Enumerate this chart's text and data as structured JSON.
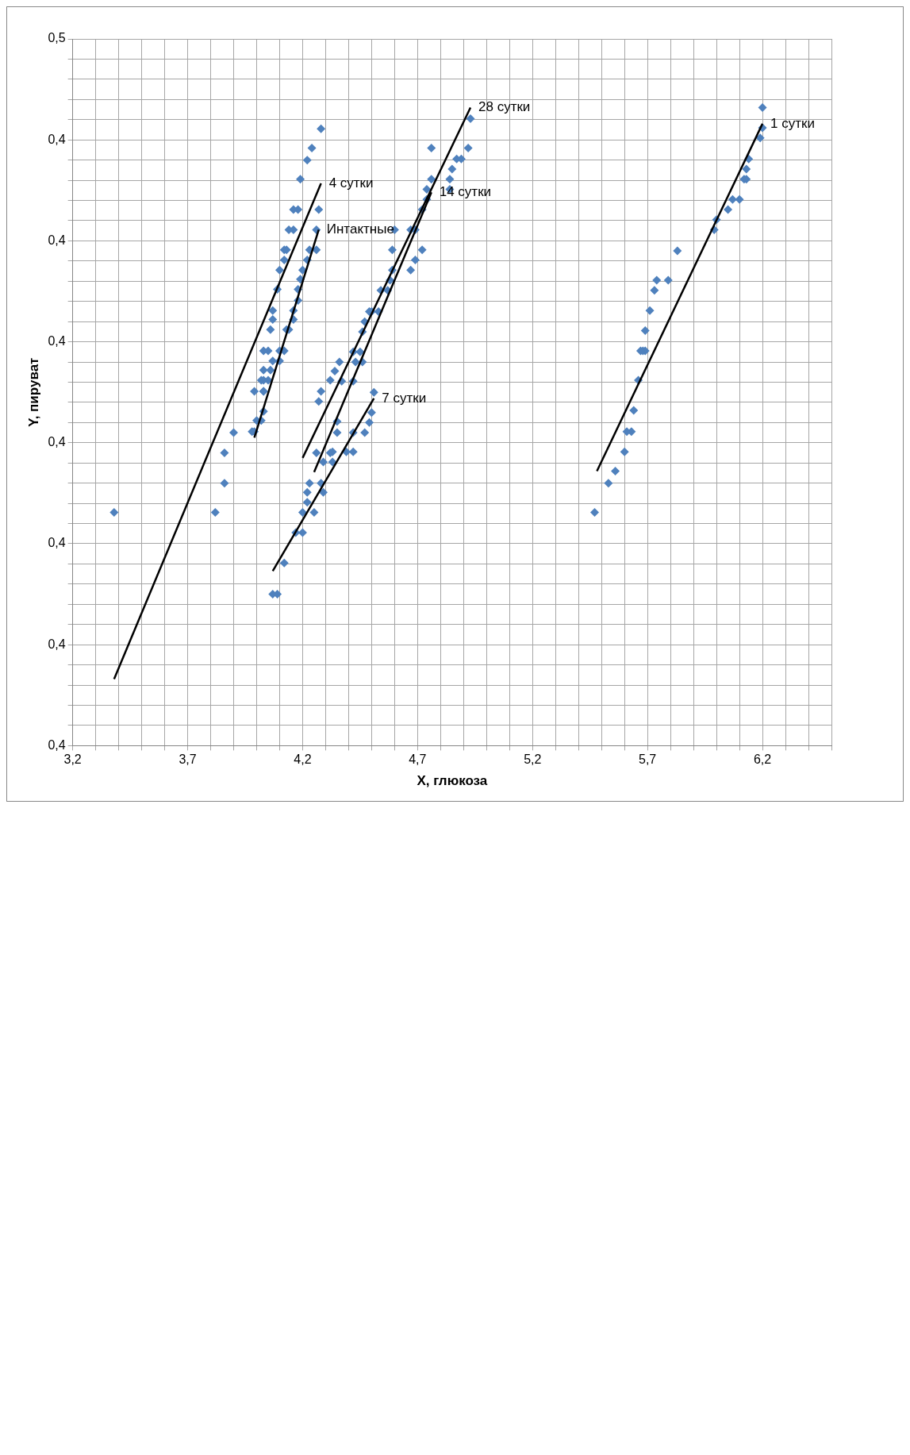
{
  "chart_data": {
    "type": "scatter",
    "xlabel": "X, глюкоза",
    "ylabel": "Y, пируват",
    "grid": true,
    "xlim": [
      3.2,
      6.5
    ],
    "ylim": [
      0.38,
      0.45
    ],
    "xticks": [
      {
        "value": 3.2,
        "label": "3,2"
      },
      {
        "value": 3.3,
        "label": null
      },
      {
        "value": 3.4,
        "label": null
      },
      {
        "value": 3.5,
        "label": null
      },
      {
        "value": 3.6,
        "label": null
      },
      {
        "value": 3.7,
        "label": "3,7"
      },
      {
        "value": 3.8,
        "label": null
      },
      {
        "value": 3.9,
        "label": null
      },
      {
        "value": 4.0,
        "label": null
      },
      {
        "value": 4.1,
        "label": null
      },
      {
        "value": 4.2,
        "label": "4,2"
      },
      {
        "value": 4.3,
        "label": null
      },
      {
        "value": 4.4,
        "label": null
      },
      {
        "value": 4.5,
        "label": null
      },
      {
        "value": 4.6,
        "label": null
      },
      {
        "value": 4.7,
        "label": "4,7"
      },
      {
        "value": 4.8,
        "label": null
      },
      {
        "value": 4.9,
        "label": null
      },
      {
        "value": 5.0,
        "label": null
      },
      {
        "value": 5.1,
        "label": null
      },
      {
        "value": 5.2,
        "label": "5,2"
      },
      {
        "value": 5.3,
        "label": null
      },
      {
        "value": 5.4,
        "label": null
      },
      {
        "value": 5.5,
        "label": null
      },
      {
        "value": 5.6,
        "label": null
      },
      {
        "value": 5.7,
        "label": "5,7"
      },
      {
        "value": 5.8,
        "label": null
      },
      {
        "value": 5.9,
        "label": null
      },
      {
        "value": 6.0,
        "label": null
      },
      {
        "value": 6.1,
        "label": null
      },
      {
        "value": 6.2,
        "label": "6,2"
      },
      {
        "value": 6.3,
        "label": null
      },
      {
        "value": 6.4,
        "label": null
      },
      {
        "value": 6.5,
        "label": null
      }
    ],
    "yticks": [
      {
        "value": 0.38,
        "label": "0,4"
      },
      {
        "value": 0.382,
        "label": null
      },
      {
        "value": 0.384,
        "label": null
      },
      {
        "value": 0.386,
        "label": null
      },
      {
        "value": 0.388,
        "label": null
      },
      {
        "value": 0.39,
        "label": "0,4"
      },
      {
        "value": 0.392,
        "label": null
      },
      {
        "value": 0.394,
        "label": null
      },
      {
        "value": 0.396,
        "label": null
      },
      {
        "value": 0.398,
        "label": null
      },
      {
        "value": 0.4,
        "label": "0,4"
      },
      {
        "value": 0.402,
        "label": null
      },
      {
        "value": 0.404,
        "label": null
      },
      {
        "value": 0.406,
        "label": null
      },
      {
        "value": 0.408,
        "label": null
      },
      {
        "value": 0.41,
        "label": "0,4"
      },
      {
        "value": 0.412,
        "label": null
      },
      {
        "value": 0.414,
        "label": null
      },
      {
        "value": 0.416,
        "label": null
      },
      {
        "value": 0.418,
        "label": null
      },
      {
        "value": 0.42,
        "label": "0,4"
      },
      {
        "value": 0.422,
        "label": null
      },
      {
        "value": 0.424,
        "label": null
      },
      {
        "value": 0.426,
        "label": null
      },
      {
        "value": 0.428,
        "label": null
      },
      {
        "value": 0.43,
        "label": "0,4"
      },
      {
        "value": 0.432,
        "label": null
      },
      {
        "value": 0.434,
        "label": null
      },
      {
        "value": 0.436,
        "label": null
      },
      {
        "value": 0.438,
        "label": null
      },
      {
        "value": 0.44,
        "label": "0,4"
      },
      {
        "value": 0.442,
        "label": null
      },
      {
        "value": 0.444,
        "label": null
      },
      {
        "value": 0.446,
        "label": null
      },
      {
        "value": 0.448,
        "label": null
      },
      {
        "value": 0.45,
        "label": "0,5"
      }
    ],
    "series": [
      {
        "type": "scatter",
        "marker": "diamond",
        "color": "#4f81bd",
        "x": [
          6.2,
          6.2,
          6.19,
          6.14,
          6.13,
          6.13,
          6.12,
          6.1,
          6.07,
          6.05,
          6,
          5.99,
          5.83,
          5.79,
          5.74,
          5.73,
          5.71,
          5.69,
          5.69,
          5.68,
          5.67,
          5.66,
          5.64,
          5.63,
          5.61,
          5.6,
          5.56,
          5.53,
          5.47,
          4.93,
          4.92,
          4.89,
          4.87,
          4.85,
          4.84,
          4.84,
          4.76,
          4.76,
          4.74,
          4.74,
          4.72,
          4.69,
          4.67,
          4.72,
          4.69,
          4.67,
          4.6,
          4.59,
          4.59,
          4.58,
          4.57,
          4.54,
          4.53,
          4.5,
          4.49,
          4.47,
          4.46,
          4.45,
          4.46,
          4.43,
          4.42,
          4.36,
          4.34,
          4.42,
          4.37,
          4.35,
          4.35,
          4.51,
          4.5,
          4.49,
          4.47,
          4.42,
          4.42,
          4.39,
          4.33,
          4.33,
          4.28,
          4.24,
          4.22,
          4.19,
          4.27,
          4.18,
          4.16,
          4.26,
          4.16,
          4.14,
          4.26,
          4.23,
          4.13,
          4.12,
          4.22,
          4.12,
          4.2,
          4.1,
          4.19,
          4.18,
          4.09,
          4.18,
          4.16,
          4.07,
          4.16,
          4.07,
          4.14,
          4.13,
          4.06,
          4.12,
          4.1,
          4.05,
          4.03,
          4.1,
          4.07,
          4.06,
          4.03,
          4.05,
          4.03,
          4.02,
          4.03,
          4.03,
          3.99,
          4.03,
          4.02,
          4,
          3.99,
          3.98,
          3.9,
          3.86,
          3.86,
          3.82,
          3.38,
          4.26,
          4.28,
          4.23,
          4.29,
          4.22,
          4.22,
          4.25,
          4.2,
          4.2,
          4.17,
          4.12,
          4.09,
          4.07,
          4.28,
          4.27,
          4.32,
          4.32,
          4.29
        ],
        "values": [
          0.4432,
          0.4412,
          0.4402,
          0.4381,
          0.4371,
          0.4361,
          0.4361,
          0.4341,
          0.4341,
          0.4331,
          0.4321,
          0.4311,
          0.429,
          0.4261,
          0.4261,
          0.4251,
          0.4231,
          0.4211,
          0.4191,
          0.4191,
          0.4191,
          0.4162,
          0.4132,
          0.4111,
          0.4111,
          0.4091,
          0.4072,
          0.406,
          0.4031,
          0.4421,
          0.4392,
          0.4381,
          0.4381,
          0.4371,
          0.4361,
          0.4351,
          0.4392,
          0.4361,
          0.4351,
          0.4341,
          0.4331,
          0.4311,
          0.4311,
          0.4291,
          0.4281,
          0.4271,
          0.4311,
          0.4291,
          0.4271,
          0.4261,
          0.4251,
          0.4251,
          0.423,
          0.423,
          0.423,
          0.422,
          0.421,
          0.419,
          0.418,
          0.418,
          0.419,
          0.418,
          0.4171,
          0.4161,
          0.4161,
          0.4121,
          0.411,
          0.415,
          0.413,
          0.412,
          0.411,
          0.411,
          0.4091,
          0.4091,
          0.4091,
          0.4081,
          0.4411,
          0.4392,
          0.438,
          0.4361,
          0.4331,
          0.4331,
          0.4331,
          0.4311,
          0.4311,
          0.4311,
          0.4291,
          0.4291,
          0.4291,
          0.4291,
          0.4281,
          0.4281,
          0.4271,
          0.4271,
          0.4262,
          0.4252,
          0.4252,
          0.4241,
          0.4231,
          0.4231,
          0.4222,
          0.4222,
          0.4212,
          0.4212,
          0.4212,
          0.4191,
          0.4191,
          0.4191,
          0.4191,
          0.4181,
          0.4181,
          0.4172,
          0.4172,
          0.4162,
          0.4162,
          0.4162,
          0.4151,
          0.4151,
          0.4151,
          0.4131,
          0.4122,
          0.4122,
          0.4111,
          0.4111,
          0.411,
          0.409,
          0.406,
          0.4031,
          0.4031,
          0.409,
          0.406,
          0.406,
          0.4051,
          0.4051,
          0.4041,
          0.4031,
          0.4031,
          0.4011,
          0.4011,
          0.3981,
          0.395,
          0.395,
          0.4151,
          0.4141,
          0.4162,
          0.409,
          0.4081
        ]
      },
      {
        "type": "line",
        "name": "1 сутки",
        "marker": "none",
        "color": "#000000",
        "x": [
          6.2,
          5.48
        ],
        "values": [
          0.4416,
          0.4072
        ]
      },
      {
        "type": "line",
        "name": "28 сутки",
        "marker": "none",
        "color": "#000000",
        "x": [
          4.93,
          4.2
        ],
        "values": [
          0.4432,
          0.4085
        ]
      },
      {
        "type": "line",
        "name": "14 сутки",
        "marker": "none",
        "color": "#000000",
        "x": [
          4.76,
          4.25
        ],
        "values": [
          0.4348,
          0.4071
        ]
      },
      {
        "type": "line",
        "name": "7 сутки",
        "marker": "none",
        "color": "#000000",
        "x": [
          4.51,
          4.07
        ],
        "values": [
          0.4144,
          0.3973
        ]
      },
      {
        "type": "line",
        "name": "Интактные",
        "marker": "none",
        "color": "#000000",
        "x": [
          4.27,
          3.99
        ],
        "values": [
          0.4311,
          0.4105
        ]
      },
      {
        "type": "line",
        "name": "4 сутки",
        "marker": "none",
        "color": "#000000",
        "x": [
          4.28,
          3.38
        ],
        "values": [
          0.4357,
          0.3866
        ]
      }
    ]
  }
}
